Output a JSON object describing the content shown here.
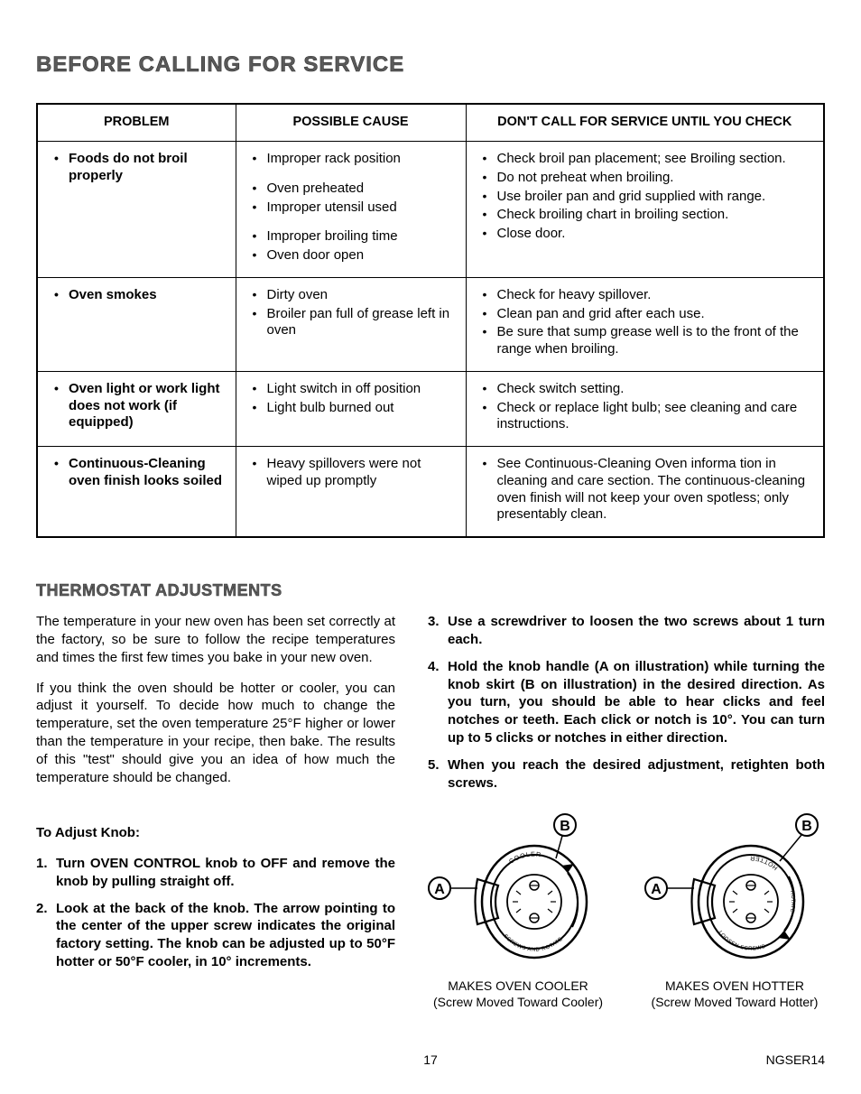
{
  "headings": {
    "main": "BEFORE CALLING FOR SERVICE",
    "thermostat": "THERMOSTAT ADJUSTMENTS",
    "to_adjust": "To Adjust Knob:"
  },
  "table": {
    "headers": {
      "problem": "PROBLEM",
      "cause": "POSSIBLE CAUSE",
      "check": "DON'T CALL FOR SERVICE UNTIL YOU CHECK"
    },
    "rows": [
      {
        "problem": [
          "Foods do not broil properly"
        ],
        "cause": [
          "Improper rack position",
          "Oven preheated",
          "Improper utensil used",
          "Improper broiling time",
          "Oven door open"
        ],
        "cause_spacing": "custom1",
        "check": [
          "Check broil pan placement; see Broiling section.",
          "Do not preheat when broiling.",
          "Use broiler pan and grid supplied with range.",
          "Check broiling chart in broiling section.",
          "Close door."
        ]
      },
      {
        "problem": [
          "Oven smokes"
        ],
        "cause": [
          "Dirty oven",
          "Broiler pan full of grease left in oven"
        ],
        "check": [
          "Check for heavy spillover.",
          "Clean pan and grid after each use.",
          "Be sure that sump grease well is to the front of the range when broiling."
        ]
      },
      {
        "problem": [
          "Oven light or work light does not work (if equipped)"
        ],
        "cause": [
          "Light switch in off position",
          "Light bulb burned out"
        ],
        "check": [
          "Check switch setting.",
          "Check or replace light bulb; see cleaning and care instructions."
        ]
      },
      {
        "problem": [
          "Continuous-Cleaning oven finish looks soiled"
        ],
        "cause": [
          "Heavy spillovers were not wiped up promptly"
        ],
        "check": [
          "See Continuous-Cleaning Oven informa tion in cleaning and care section. The continuous-cleaning oven finish will not keep your oven spotless; only presentably clean."
        ]
      }
    ]
  },
  "thermostat": {
    "p1": "The temperature in your new oven has been set correctly at the factory, so be sure to follow the recipe temperatures and times the first few times you bake in your new oven.",
    "p2": "If you think the oven should be hotter or cooler, you can adjust it yourself. To decide how much to change the temperature, set the oven temperature 25°F higher or lower than the temperature in your recipe, then bake. The results of this \"test\" should give you an idea of how much the temperature should be changed.",
    "steps_left": [
      "Turn OVEN CONTROL knob to OFF and remove the knob by pulling straight off.",
      "Look at the back of the knob. The arrow pointing to the center of the upper screw indicates the original factory setting. The knob can be adjusted up to 50°F hotter or 50°F cooler, in 10° increments."
    ],
    "steps_right": [
      "Use a screwdriver to loosen the two screws about 1 turn each.",
      "Hold the knob handle (A on illustration) while turning the knob skirt (B on illustration) in the desired direction. As you turn, you should be able to hear clicks and feel notches or teeth. Each click or notch is 10°. You can turn up to 5 clicks or notches in either direction.",
      "When you reach the desired adjustment, retighten both screws."
    ],
    "diagrams": {
      "labelA": "A",
      "labelB": "B",
      "cooler_top": "MAKES OVEN COOLER",
      "cooler_bottom": "(Screw Moved Toward Cooler)",
      "hotter_top": "MAKES OVEN HOTTER",
      "hotter_bottom": "(Screw Moved Toward Hotter)",
      "knob_inner_cooler": [
        "COOLER",
        "SCREWS AND ROTATE"
      ],
      "knob_inner_hotter": [
        "HOTTER",
        "LOOSEN SCREWS",
        "ROTATE"
      ]
    }
  },
  "footer": {
    "page": "17",
    "doc": "NGSER14"
  },
  "colors": {
    "heading_gray": "#5a5a5a",
    "stroke": "#000000",
    "bg": "#ffffff"
  }
}
